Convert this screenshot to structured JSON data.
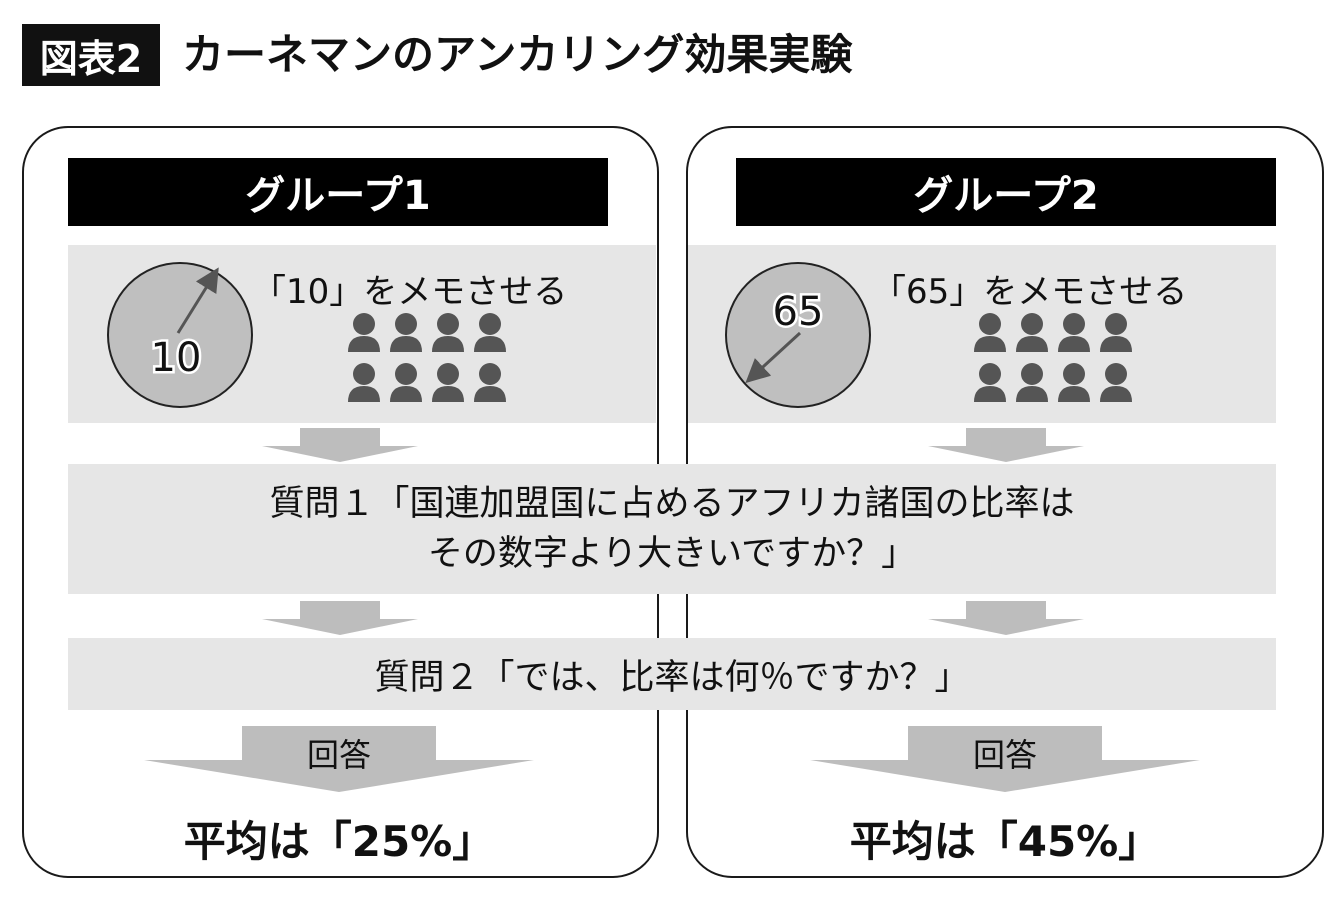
{
  "title": {
    "tag": "図表2",
    "text": "カーネマンのアンカリング効果実験"
  },
  "groups": [
    {
      "name": "グループ1",
      "number": "10",
      "memo": "「10」をメモさせる",
      "answer_label": "回答",
      "result": "平均は「25%」"
    },
    {
      "name": "グループ2",
      "number": "65",
      "memo": "「65」をメモさせる",
      "answer_label": "回答",
      "result": "平均は「45%」"
    }
  ],
  "question1": {
    "line1": "質問１「国連加盟国に占めるアフリカ諸国の比率は",
    "line2": "その数字より大きいですか？」"
  },
  "question2": "質問２「では、比率は何％ですか？」",
  "colors": {
    "band": "#e6e6e6",
    "arrow": "#bdbdbd",
    "dial": "#bfbfbf",
    "person": "#555555",
    "header": "#000000"
  }
}
